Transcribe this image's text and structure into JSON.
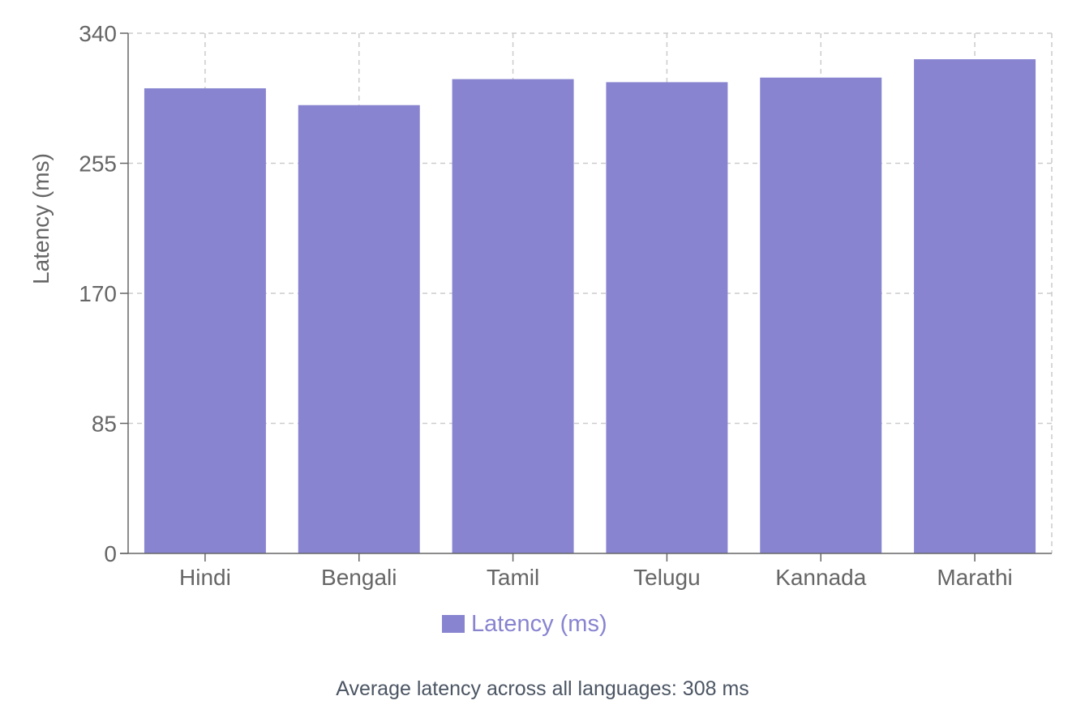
{
  "chart_data": {
    "type": "bar",
    "categories": [
      "Hindi",
      "Bengali",
      "Tamil",
      "Telugu",
      "Kannada",
      "Marathi"
    ],
    "series": [
      {
        "name": "Latency (ms)",
        "values": [
          304,
          293,
          310,
          308,
          311,
          323
        ]
      }
    ],
    "ylabel": "Latency (ms)",
    "xlabel": "",
    "ylim": [
      0,
      340
    ],
    "yticks": [
      0,
      85,
      170,
      255,
      340
    ],
    "grid": true,
    "legend_position": "bottom",
    "bar_color": "#8884d0"
  },
  "footnote": "Average latency across all languages: 308 ms"
}
